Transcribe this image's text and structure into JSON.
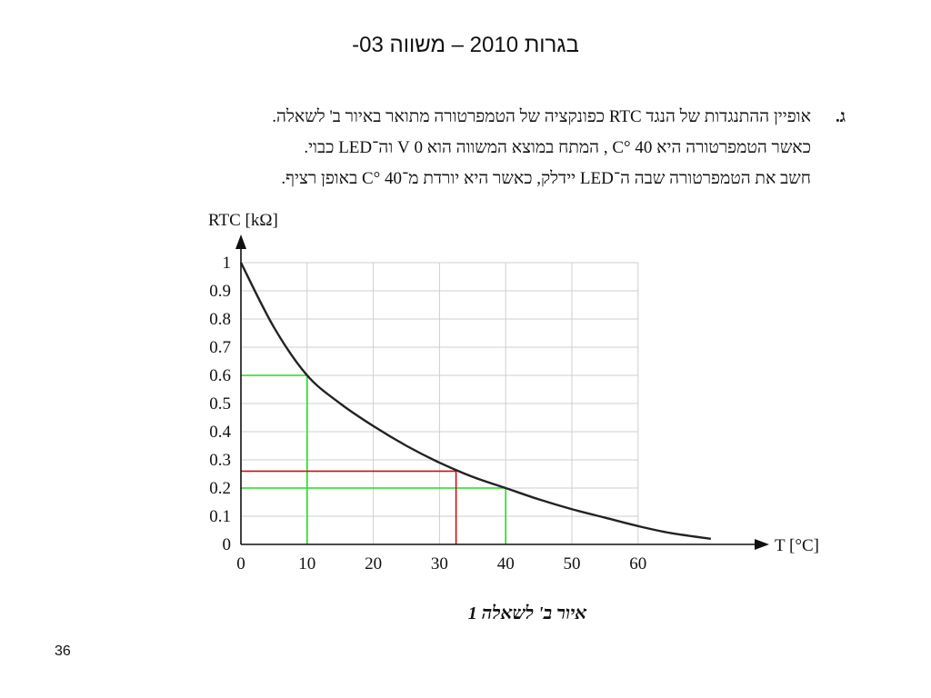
{
  "header": {
    "title": "בגרות 2010 – משווה   03-"
  },
  "question": {
    "letter": "ג.",
    "lines": [
      "אופיין ההתנגדות של הנגד RTC כפונקציה של הטמפרטורה מתואר באיור ב' לשאלה.",
      "כאשר הטמפרטורה היא 40 °C , המתח במוצא המשווה הוא 0 V וה־LED כבוי.",
      "חשב את הטמפרטורה שבה ה־LED יידלק, כאשר היא יורדת מ־40 °C באופן רציף."
    ]
  },
  "chart_data": {
    "type": "line",
    "xlabel": "T [°C]",
    "ylabel": "RTC [kΩ]",
    "xlim": [
      0,
      70
    ],
    "ylim": [
      0,
      1
    ],
    "xticks": [
      "0",
      "10",
      "20",
      "30",
      "40",
      "50",
      "60"
    ],
    "yticks": [
      "0",
      "0.1",
      "0.2",
      "0.3",
      "0.4",
      "0.5",
      "0.6",
      "0.7",
      "0.8",
      "0.9",
      "1"
    ],
    "grid": true,
    "series": [
      {
        "x": [
          0,
          5,
          10,
          15,
          20,
          25,
          30,
          35,
          40,
          45,
          50,
          55,
          60,
          65,
          71
        ],
        "values": [
          1.0,
          0.77,
          0.6,
          0.5,
          0.42,
          0.35,
          0.29,
          0.24,
          0.2,
          0.16,
          0.125,
          0.095,
          0.065,
          0.04,
          0.02
        ],
        "color": "#222222"
      }
    ],
    "annotations": [
      {
        "type": "guide",
        "x": 10,
        "y": 0.6,
        "color": "#22dd22"
      },
      {
        "type": "guide",
        "x": 40,
        "y": 0.2,
        "color": "#22dd22"
      },
      {
        "type": "guide",
        "x": 32.5,
        "y": 0.26,
        "color": "#cc1111"
      }
    ]
  },
  "caption": "איור ב' לשאלה 1",
  "page_number": "36"
}
